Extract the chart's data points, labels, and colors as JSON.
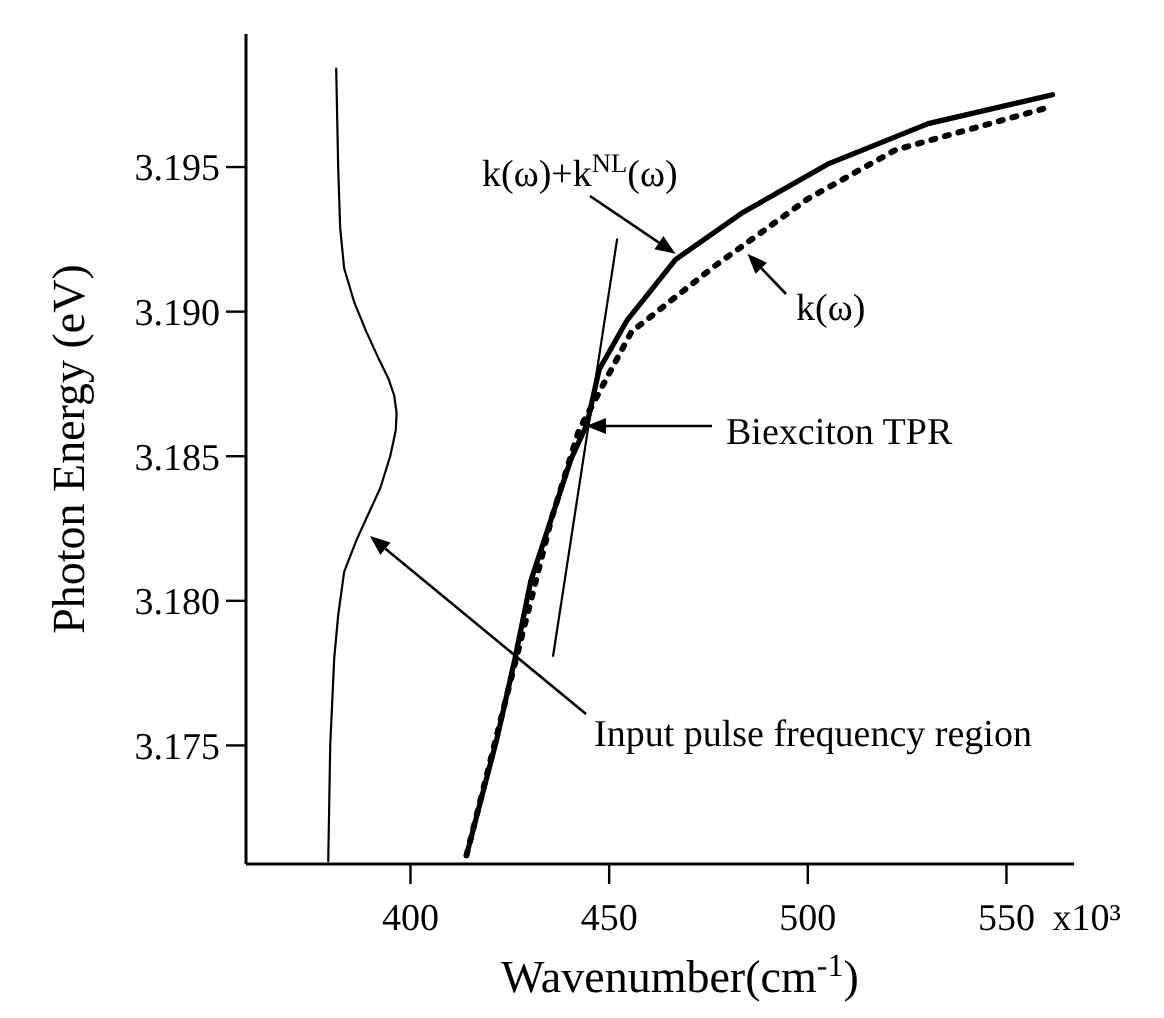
{
  "chart_data": {
    "type": "line",
    "xlabel": "Wavenumber(cm$^{-1}$)",
    "ylabel": "Photon Energy (eV)",
    "xlim": [
      358.6,
      567
    ],
    "xticks": [
      400,
      450,
      500,
      550
    ],
    "ylim": [
      3.1709,
      3.1996
    ],
    "yticks": [
      3.175,
      {
        "value": 3.18,
        "label": "3.180"
      },
      3.185,
      {
        "value": 3.19,
        "label": "3.190"
      },
      3.195
    ],
    "grid": false,
    "marker": "none",
    "series": [
      {
        "color": "#000000",
        "line_style": "solid",
        "x": [
          379.3,
          379.8,
          380.8,
          381.8,
          383.3,
          386.4,
          389.4,
          392.4,
          394.9,
          396.3,
          396.5,
          395.9,
          394.4,
          391.9,
          388.9,
          385.9,
          383.3,
          382.3,
          381.8,
          381.3
        ],
        "values": [
          3.171,
          3.175,
          3.178,
          3.1795,
          3.181,
          3.1821,
          3.183,
          3.1839,
          3.185,
          3.1859,
          3.1865,
          3.1871,
          3.1877,
          3.1884,
          3.1893,
          3.1903,
          3.1915,
          3.1929,
          3.195,
          3.1984
        ]
      },
      {
        "color": "#000000",
        "line_style": "solid",
        "x": [
          414.1,
          417.7,
          421.7,
          426.3,
          430.3,
          440.4,
          444.4,
          447.5,
          454.5,
          466.7,
          483.3,
          505,
          530.3,
          561.6
        ],
        "values": [
          3.1712,
          3.1731,
          3.1752,
          3.178,
          3.1807,
          3.1849,
          3.1861,
          3.188,
          3.1897,
          3.1918,
          3.1934,
          3.1951,
          3.1965,
          3.1975
        ]
      },
      {
        "color": "#000000",
        "line_style": "dotted",
        "x": [
          414.1,
          425.3,
          430.3,
          435.4,
          442.4,
          455.6,
          476.8,
          500,
          522.2,
          561.6
        ],
        "values": [
          3.1712,
          3.1773,
          3.18,
          3.1828,
          3.1859,
          3.1893,
          3.1916,
          3.1939,
          3.1956,
          3.1971
        ]
      },
      {
        "color": "#000000",
        "line_style": "solid",
        "x": [
          435.9,
          452
        ],
        "values": [
          3.1781,
          3.1925
        ]
      }
    ],
    "annotations": [
      {
        "text": "k(ω)+k$^{NL}$(ω)",
        "x": 466.7,
        "y": 3.192
      },
      {
        "text": "k(ω)",
        "x": 484.8,
        "y": 3.192
      },
      "Biexciton TPR",
      "Input pulse frequency region",
      "x10³"
    ]
  }
}
